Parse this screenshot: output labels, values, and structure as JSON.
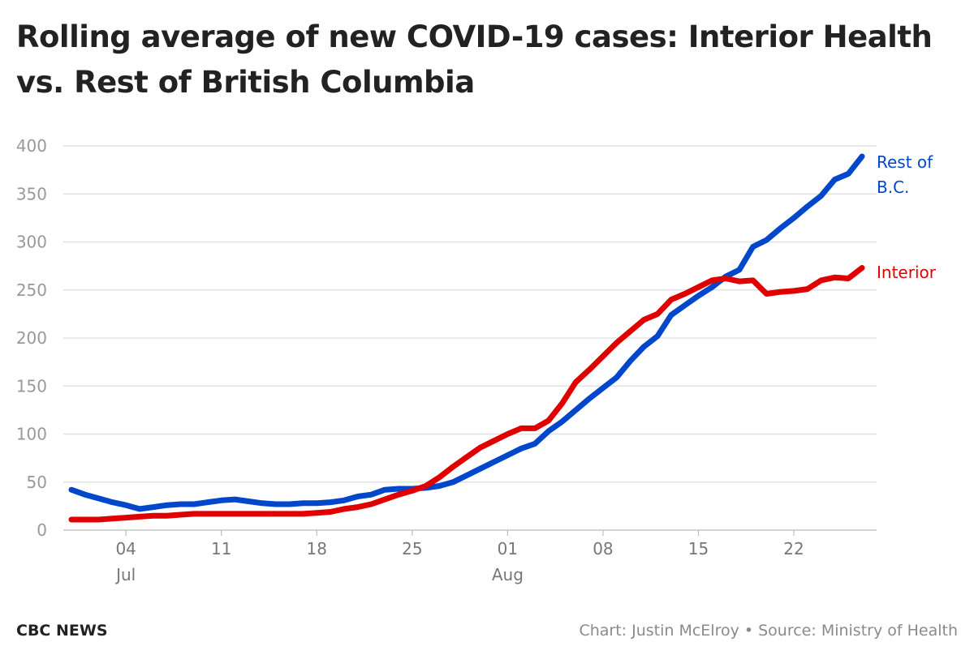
{
  "title": "Rolling average of new COVID-19 cases: Interior Health vs. Rest of British Columbia",
  "footer": {
    "brand": "CBC NEWS",
    "credit": "Chart: Justin McElroy • Source: Ministry of Health"
  },
  "colors": {
    "rest_of_bc": "#0047cc",
    "interior": "#e00000",
    "grid": "#dddddd",
    "axis_text": "#999999"
  },
  "chart_data": {
    "type": "line",
    "x_start": "2021-06-30",
    "x_end": "2021-08-27",
    "ylim": [
      0,
      400
    ],
    "yticks": [
      0,
      50,
      100,
      150,
      200,
      250,
      300,
      350,
      400
    ],
    "xticks": [
      {
        "label": "04",
        "sub": "Jul",
        "date": "2021-07-04"
      },
      {
        "label": "11",
        "sub": "",
        "date": "2021-07-11"
      },
      {
        "label": "18",
        "sub": "",
        "date": "2021-07-18"
      },
      {
        "label": "25",
        "sub": "",
        "date": "2021-07-25"
      },
      {
        "label": "01",
        "sub": "Aug",
        "date": "2021-08-01"
      },
      {
        "label": "08",
        "sub": "",
        "date": "2021-08-08"
      },
      {
        "label": "15",
        "sub": "",
        "date": "2021-08-15"
      },
      {
        "label": "22",
        "sub": "",
        "date": "2021-08-22"
      }
    ],
    "grid": true,
    "series": [
      {
        "name": "Rest of B.C.",
        "label_lines": [
          "Rest of",
          "B.C."
        ],
        "color": "#0047cc",
        "points": [
          [
            "2021-06-30",
            42
          ],
          [
            "2021-07-01",
            37
          ],
          [
            "2021-07-02",
            33
          ],
          [
            "2021-07-03",
            29
          ],
          [
            "2021-07-04",
            26
          ],
          [
            "2021-07-05",
            22
          ],
          [
            "2021-07-06",
            24
          ],
          [
            "2021-07-07",
            26
          ],
          [
            "2021-07-08",
            27
          ],
          [
            "2021-07-09",
            27
          ],
          [
            "2021-07-10",
            29
          ],
          [
            "2021-07-11",
            31
          ],
          [
            "2021-07-12",
            32
          ],
          [
            "2021-07-13",
            30
          ],
          [
            "2021-07-14",
            28
          ],
          [
            "2021-07-15",
            27
          ],
          [
            "2021-07-16",
            27
          ],
          [
            "2021-07-17",
            28
          ],
          [
            "2021-07-18",
            28
          ],
          [
            "2021-07-19",
            29
          ],
          [
            "2021-07-20",
            31
          ],
          [
            "2021-07-21",
            35
          ],
          [
            "2021-07-22",
            37
          ],
          [
            "2021-07-23",
            42
          ],
          [
            "2021-07-24",
            43
          ],
          [
            "2021-07-25",
            43
          ],
          [
            "2021-07-26",
            44
          ],
          [
            "2021-07-27",
            46
          ],
          [
            "2021-07-28",
            50
          ],
          [
            "2021-07-29",
            57
          ],
          [
            "2021-07-30",
            64
          ],
          [
            "2021-07-31",
            71
          ],
          [
            "2021-08-01",
            78
          ],
          [
            "2021-08-02",
            85
          ],
          [
            "2021-08-03",
            90
          ],
          [
            "2021-08-04",
            103
          ],
          [
            "2021-08-05",
            113
          ],
          [
            "2021-08-06",
            125
          ],
          [
            "2021-08-07",
            137
          ],
          [
            "2021-08-08",
            148
          ],
          [
            "2021-08-09",
            159
          ],
          [
            "2021-08-10",
            176
          ],
          [
            "2021-08-11",
            191
          ],
          [
            "2021-08-12",
            202
          ],
          [
            "2021-08-13",
            224
          ],
          [
            "2021-08-14",
            234
          ],
          [
            "2021-08-15",
            244
          ],
          [
            "2021-08-16",
            253
          ],
          [
            "2021-08-17",
            264
          ],
          [
            "2021-08-18",
            271
          ],
          [
            "2021-08-19",
            295
          ],
          [
            "2021-08-20",
            302
          ],
          [
            "2021-08-21",
            314
          ],
          [
            "2021-08-22",
            325
          ],
          [
            "2021-08-23",
            337
          ],
          [
            "2021-08-24",
            348
          ],
          [
            "2021-08-25",
            365
          ],
          [
            "2021-08-26",
            371
          ],
          [
            "2021-08-27",
            389
          ]
        ]
      },
      {
        "name": "Interior",
        "label_lines": [
          "Interior"
        ],
        "color": "#e00000",
        "points": [
          [
            "2021-06-30",
            11
          ],
          [
            "2021-07-01",
            11
          ],
          [
            "2021-07-02",
            11
          ],
          [
            "2021-07-03",
            12
          ],
          [
            "2021-07-04",
            13
          ],
          [
            "2021-07-05",
            14
          ],
          [
            "2021-07-06",
            15
          ],
          [
            "2021-07-07",
            15
          ],
          [
            "2021-07-08",
            16
          ],
          [
            "2021-07-09",
            17
          ],
          [
            "2021-07-10",
            17
          ],
          [
            "2021-07-11",
            17
          ],
          [
            "2021-07-12",
            17
          ],
          [
            "2021-07-13",
            17
          ],
          [
            "2021-07-14",
            17
          ],
          [
            "2021-07-15",
            17
          ],
          [
            "2021-07-16",
            17
          ],
          [
            "2021-07-17",
            17
          ],
          [
            "2021-07-18",
            18
          ],
          [
            "2021-07-19",
            19
          ],
          [
            "2021-07-20",
            22
          ],
          [
            "2021-07-21",
            24
          ],
          [
            "2021-07-22",
            27
          ],
          [
            "2021-07-23",
            32
          ],
          [
            "2021-07-24",
            37
          ],
          [
            "2021-07-25",
            41
          ],
          [
            "2021-07-26",
            46
          ],
          [
            "2021-07-27",
            55
          ],
          [
            "2021-07-28",
            66
          ],
          [
            "2021-07-29",
            76
          ],
          [
            "2021-07-30",
            86
          ],
          [
            "2021-07-31",
            93
          ],
          [
            "2021-08-01",
            100
          ],
          [
            "2021-08-02",
            106
          ],
          [
            "2021-08-03",
            106
          ],
          [
            "2021-08-04",
            114
          ],
          [
            "2021-08-05",
            132
          ],
          [
            "2021-08-06",
            154
          ],
          [
            "2021-08-07",
            167
          ],
          [
            "2021-08-08",
            181
          ],
          [
            "2021-08-09",
            195
          ],
          [
            "2021-08-10",
            207
          ],
          [
            "2021-08-11",
            219
          ],
          [
            "2021-08-12",
            225
          ],
          [
            "2021-08-13",
            240
          ],
          [
            "2021-08-14",
            246
          ],
          [
            "2021-08-15",
            253
          ],
          [
            "2021-08-16",
            260
          ],
          [
            "2021-08-17",
            262
          ],
          [
            "2021-08-18",
            259
          ],
          [
            "2021-08-19",
            260
          ],
          [
            "2021-08-20",
            246
          ],
          [
            "2021-08-21",
            248
          ],
          [
            "2021-08-22",
            249
          ],
          [
            "2021-08-23",
            251
          ],
          [
            "2021-08-24",
            260
          ],
          [
            "2021-08-25",
            263
          ],
          [
            "2021-08-26",
            262
          ],
          [
            "2021-08-27",
            273
          ]
        ]
      }
    ]
  }
}
